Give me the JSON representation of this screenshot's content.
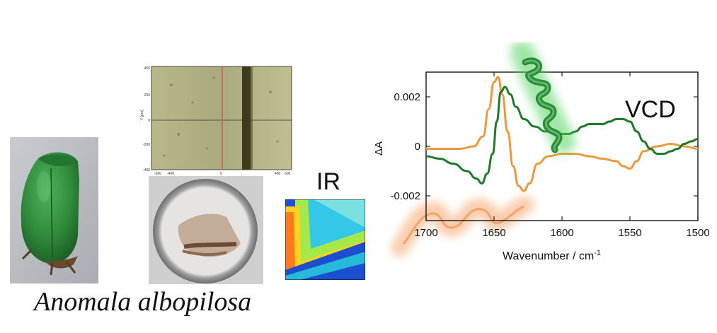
{
  "caption": "Anomala albopilosa",
  "ir_label": "IR",
  "micrograph": {
    "y_axis_label": "Y [μm]",
    "y_ticks": [
      "450",
      "200",
      "0",
      "-200",
      "-400"
    ],
    "x_ticks": [
      "-600",
      "-400",
      "0",
      "400",
      "600"
    ]
  },
  "colors": {
    "vcd_orange": "#e89a3c",
    "vcd_green": "#1f7a2a",
    "beetle_green": "#2f8a3a"
  },
  "icons": {
    "helix": "alpha-helix-icon",
    "coil": "random-coil-icon"
  },
  "chart_data": {
    "type": "line",
    "title": "VCD",
    "xlabel": "Wavenumber / cm",
    "xlabel_sup": "-1",
    "ylabel": "ΔA",
    "xlim": [
      1700,
      1500
    ],
    "ylim": [
      -0.003,
      0.003
    ],
    "x_ticks": [
      1700,
      1650,
      1600,
      1550,
      1500
    ],
    "y_ticks": [
      0.002,
      0,
      -0.002
    ],
    "x_tick_labels": [
      "1700",
      "1650",
      "1600",
      "1550",
      "1500"
    ],
    "y_tick_labels": [
      "0.002",
      "0",
      "-0.002"
    ],
    "series": [
      {
        "color": "#e89a3c",
        "x": [
          1710,
          1690,
          1675,
          1665,
          1658,
          1654,
          1650,
          1647,
          1644,
          1640,
          1636,
          1632,
          1628,
          1624,
          1618,
          1610,
          1600,
          1590,
          1580,
          1570,
          1560,
          1555,
          1550,
          1545,
          1540,
          1530,
          1520,
          1510,
          1500
        ],
        "y": [
          -0.0001,
          -0.0001,
          -0.0001,
          0.0,
          0.0004,
          0.0015,
          0.0026,
          0.0028,
          0.0021,
          0.0006,
          -0.0008,
          -0.0016,
          -0.0018,
          -0.0015,
          -0.0007,
          -0.0004,
          -0.0003,
          -0.0003,
          -0.0004,
          -0.0005,
          -0.0006,
          -0.0008,
          -0.0009,
          -0.0006,
          -0.0002,
          0.0,
          0.0001,
          0.0,
          -0.0001
        ]
      },
      {
        "color": "#1f7a2a",
        "x": [
          1710,
          1700,
          1690,
          1680,
          1670,
          1663,
          1659,
          1655,
          1651,
          1648,
          1645,
          1642,
          1638,
          1634,
          1628,
          1620,
          1612,
          1605,
          1600,
          1595,
          1590,
          1585,
          1580,
          1575,
          1570,
          1565,
          1560,
          1555,
          1550,
          1545,
          1540,
          1535,
          1530,
          1525,
          1520,
          1515,
          1510,
          1505,
          1500
        ],
        "y": [
          -0.0002,
          -0.0004,
          -0.0005,
          -0.0007,
          -0.001,
          -0.0013,
          -0.0015,
          -0.0011,
          -0.0003,
          0.001,
          0.0022,
          0.0024,
          0.0021,
          0.0016,
          0.0011,
          0.0008,
          0.0006,
          0.0006,
          0.0005,
          0.0005,
          0.0006,
          0.0008,
          0.0009,
          0.0009,
          0.0009,
          0.001,
          0.0011,
          0.0011,
          0.001,
          0.0006,
          0.0002,
          -0.0001,
          -0.0003,
          -0.0003,
          -0.0002,
          -0.0001,
          0.0001,
          0.0002,
          0.0003
        ]
      }
    ]
  }
}
